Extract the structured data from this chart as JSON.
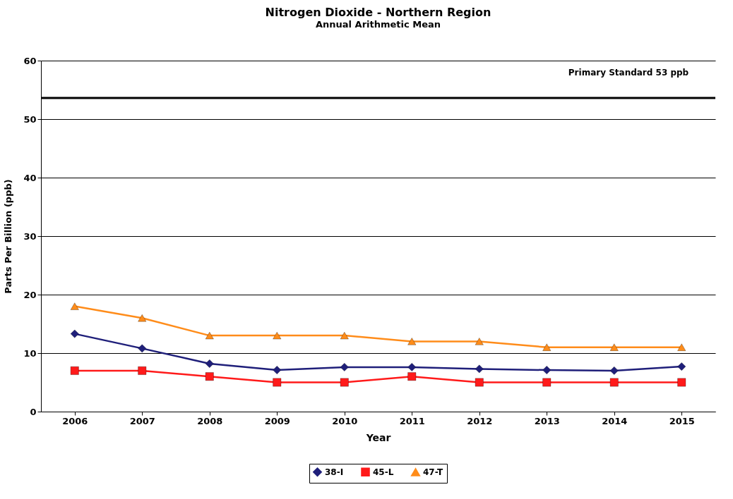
{
  "chart_data": {
    "type": "line",
    "title": "Nitrogen Dioxide - Northern Region",
    "subtitle": "Annual Arithmetic Mean",
    "xlabel": "Year",
    "ylabel": "Parts Per Billion (ppb)",
    "categories": [
      "2006",
      "2007",
      "2008",
      "2009",
      "2010",
      "2011",
      "2012",
      "2013",
      "2014",
      "2015"
    ],
    "series": [
      {
        "name": "38-I",
        "color": "#1f1f7a",
        "marker": "diamond",
        "values": [
          13.3,
          10.8,
          8.2,
          7.1,
          7.6,
          7.6,
          7.3,
          7.1,
          7.0,
          7.7
        ]
      },
      {
        "name": "45-L",
        "color": "#ff1a1a",
        "marker": "square",
        "values": [
          7,
          7,
          6,
          5,
          5,
          6,
          5,
          5,
          5,
          5
        ]
      },
      {
        "name": "47-T",
        "color": "#ff8c1a",
        "marker": "triangle",
        "values": [
          18,
          16,
          13,
          13,
          13,
          12,
          12,
          11,
          11,
          11
        ]
      }
    ],
    "ylim": [
      0,
      60
    ],
    "yticks": [
      0,
      10,
      20,
      30,
      40,
      50,
      60
    ],
    "grid": "y",
    "legend": "bottom",
    "ref_lines": [
      {
        "axis": "y",
        "value": 53.6,
        "label": "Primary Standard 53 ppb",
        "color": "#000000"
      }
    ]
  }
}
